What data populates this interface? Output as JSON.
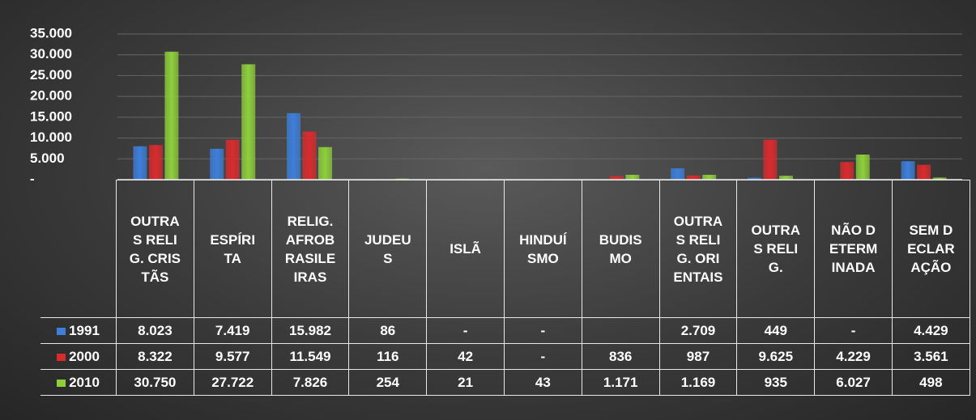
{
  "chart_data": {
    "type": "bar",
    "categories": [
      "OUTRAS RELIG. CRISTÃS",
      "ESPÍRITA",
      "RELIG. AFROBRASILEIRAS",
      "JUDEUS",
      "ISLÃ",
      "HINDUÍSMO",
      "BUDISMO",
      "OUTRAS RELIG. ORIENTAIS",
      "OUTRAS RELIG.",
      "NÃO DETERMINADA",
      "SEM DECLARAÇÃO"
    ],
    "series": [
      {
        "name": "1991",
        "color": "#3d7fd9",
        "values": [
          8023,
          7419,
          15982,
          86,
          null,
          null,
          null,
          2709,
          449,
          null,
          4429
        ],
        "value_labels": [
          "8.023",
          "7.419",
          "15.982",
          "86",
          "-",
          "-",
          null,
          "2.709",
          "449",
          "-",
          "4.429"
        ]
      },
      {
        "name": "2000",
        "color": "#d92b2e",
        "values": [
          8322,
          9577,
          11549,
          116,
          42,
          null,
          836,
          987,
          9625,
          4229,
          3561
        ],
        "value_labels": [
          "8.322",
          "9.577",
          "11.549",
          "116",
          "42",
          "-",
          "836",
          "987",
          "9.625",
          "4.229",
          "3.561"
        ]
      },
      {
        "name": "2010",
        "color": "#8fcf3c",
        "values": [
          30750,
          27722,
          7826,
          254,
          21,
          43,
          1171,
          1169,
          935,
          6027,
          498
        ],
        "value_labels": [
          "30.750",
          "27.722",
          "7.826",
          "254",
          "21",
          "43",
          "1.171",
          "1.169",
          "935",
          "6.027",
          "498"
        ]
      }
    ],
    "ylim": [
      0,
      35000
    ],
    "yticks": [
      {
        "value": 0,
        "label": "-"
      },
      {
        "value": 5000,
        "label": "5.000"
      },
      {
        "value": 10000,
        "label": "10.000"
      },
      {
        "value": 15000,
        "label": "15.000"
      },
      {
        "value": 20000,
        "label": "20.000"
      },
      {
        "value": 25000,
        "label": "25.000"
      },
      {
        "value": 30000,
        "label": "30.000"
      },
      {
        "value": 35000,
        "label": "35.000"
      }
    ],
    "grid": true
  }
}
